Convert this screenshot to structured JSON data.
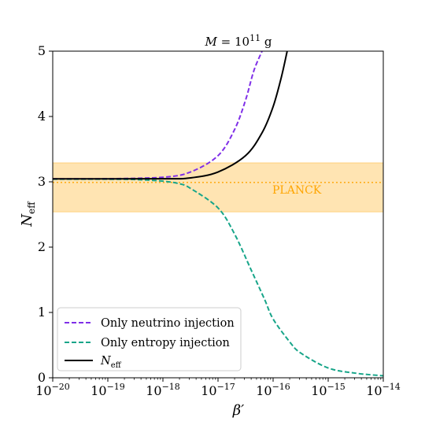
{
  "chart_data": {
    "type": "line",
    "title": "M = 10^11 g",
    "title_parts": {
      "var": "M",
      "eq": " = 10",
      "exp": "11",
      "unit": " g"
    },
    "xlabel": "β′",
    "ylabel": {
      "base": "N",
      "sub": "eff"
    },
    "xscale": "log",
    "xlim": [
      1e-20,
      1e-14
    ],
    "ylim": [
      0,
      5
    ],
    "xticks": [
      {
        "value": 1e-20,
        "base": "10",
        "exp": "−20"
      },
      {
        "value": 1e-19,
        "base": "10",
        "exp": "−19"
      },
      {
        "value": 1e-18,
        "base": "10",
        "exp": "−18"
      },
      {
        "value": 1e-17,
        "base": "10",
        "exp": "−17"
      },
      {
        "value": 1e-16,
        "base": "10",
        "exp": "−16"
      },
      {
        "value": 1e-15,
        "base": "10",
        "exp": "−15"
      },
      {
        "value": 1e-14,
        "base": "10",
        "exp": "−14"
      }
    ],
    "yticks": [
      {
        "value": 0,
        "label": "0"
      },
      {
        "value": 1,
        "label": "1"
      },
      {
        "value": 2,
        "label": "2"
      },
      {
        "value": 3,
        "label": "3"
      },
      {
        "value": 4,
        "label": "4"
      },
      {
        "value": 5,
        "label": "5"
      }
    ],
    "band": {
      "label": "PLANCK",
      "ymin": 2.54,
      "ymax": 3.29,
      "center": 2.99,
      "color": "#ffa500"
    },
    "series": [
      {
        "name": "Only neutrino injection",
        "style": "dashed",
        "color": "#7f2fe8",
        "points": [
          [
            1e-20,
            3.045
          ],
          [
            1e-19,
            3.047
          ],
          [
            1e-18,
            3.07
          ],
          [
            3.16e-18,
            3.15
          ],
          [
            1e-17,
            3.4
          ],
          [
            2e-17,
            3.8
          ],
          [
            3.16e-17,
            4.25
          ],
          [
            4.47e-17,
            4.7
          ],
          [
            6.3e-17,
            5.0
          ]
        ]
      },
      {
        "name": "Only entropy injection",
        "style": "dashed",
        "color": "#17a589",
        "points": [
          [
            1e-20,
            3.04
          ],
          [
            1e-19,
            3.04
          ],
          [
            3.16e-19,
            3.035
          ],
          [
            1e-18,
            3.01
          ],
          [
            2e-18,
            2.97
          ],
          [
            3.16e-18,
            2.9
          ],
          [
            1e-17,
            2.6
          ],
          [
            2e-17,
            2.2
          ],
          [
            4e-17,
            1.65
          ],
          [
            7e-17,
            1.2
          ],
          [
            1e-16,
            0.9
          ],
          [
            2e-16,
            0.55
          ],
          [
            3.16e-16,
            0.38
          ],
          [
            1e-15,
            0.15
          ],
          [
            3.16e-15,
            0.07
          ],
          [
            1e-14,
            0.03
          ]
        ]
      },
      {
        "name": "N_eff",
        "legend": {
          "base": "N",
          "sub": "eff"
        },
        "style": "solid",
        "color": "#000000",
        "points": [
          [
            1e-20,
            3.045
          ],
          [
            1e-18,
            3.046
          ],
          [
            3.16e-18,
            3.06
          ],
          [
            1e-17,
            3.15
          ],
          [
            3.16e-17,
            3.4
          ],
          [
            6.3e-17,
            3.75
          ],
          [
            1e-16,
            4.15
          ],
          [
            1.41e-16,
            4.6
          ],
          [
            1.8e-16,
            5.0
          ]
        ]
      }
    ],
    "legend_position": "lower-left"
  }
}
